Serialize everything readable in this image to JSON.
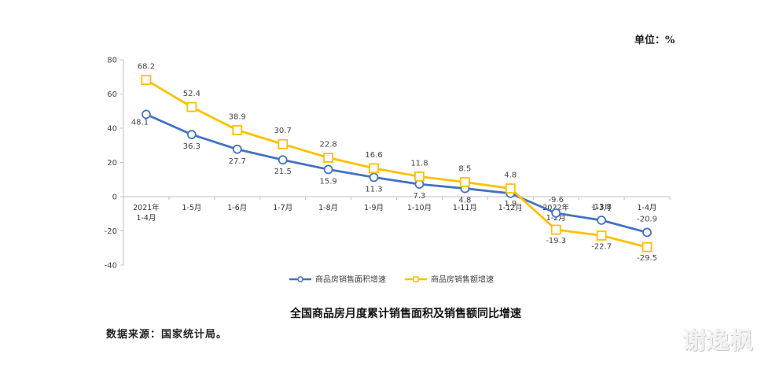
{
  "unit_label": "单位：%",
  "caption": "全国商品房月度累计销售面积及销售额同比增速",
  "source": "数据来源：国家统计局。",
  "watermark": "谢逸枫",
  "colors": {
    "area": "#4472C4",
    "amount": "#FFC000",
    "axis": "#BFBFBF"
  },
  "chart_data": {
    "type": "line",
    "title": "全国商品房月度累计销售面积及销售额同比增速",
    "xlabel": "",
    "ylabel": "单位：%",
    "ylim": [
      -40,
      80
    ],
    "yticks": [
      80,
      60,
      40,
      20,
      0,
      -20,
      -40
    ],
    "grid": false,
    "legend_position": "bottom",
    "categories": [
      "2021年 1-4月",
      "1-5月",
      "1-6月",
      "1-7月",
      "1-8月",
      "1-9月",
      "1-10月",
      "1-11月",
      "1-12月",
      "2022年 1-2月",
      "1-3月",
      "1-4月"
    ],
    "series": [
      {
        "name": "商品房销售面积增速",
        "marker": "circle",
        "color": "#4472C4",
        "values": [
          48.1,
          36.3,
          27.7,
          21.5,
          15.9,
          11.3,
          7.3,
          4.8,
          1.9,
          -9.6,
          -13.8,
          -20.9
        ]
      },
      {
        "name": "商品房销售额增速",
        "marker": "square",
        "color": "#FFC000",
        "values": [
          68.2,
          52.4,
          38.9,
          30.7,
          22.8,
          16.6,
          11.8,
          8.5,
          4.8,
          -19.3,
          -22.7,
          -29.5
        ]
      }
    ]
  }
}
